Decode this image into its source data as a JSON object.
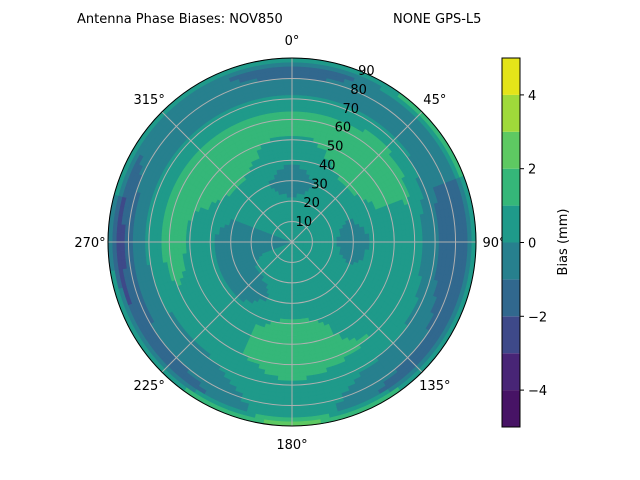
{
  "chart_data": {
    "type": "heatmap",
    "projection": "polar",
    "title_left": "Antenna Phase Biases: NOV850",
    "title_right": "NONE GPS-L5",
    "theta_direction": "clockwise",
    "theta_zero": "north",
    "theta_ticks": [
      "0°",
      "45°",
      "90°",
      "135°",
      "180°",
      "225°",
      "270°",
      "315°"
    ],
    "theta_tick_values": [
      0,
      45,
      90,
      135,
      180,
      225,
      270,
      315
    ],
    "r_ticks": [
      "10",
      "20",
      "30",
      "40",
      "50",
      "60",
      "70",
      "80",
      "90"
    ],
    "r_tick_values": [
      10,
      20,
      30,
      40,
      50,
      60,
      70,
      80,
      90
    ],
    "rlim": [
      0,
      90
    ],
    "grid": true,
    "colorbar": {
      "label": "Bias (mm)",
      "ticks": [
        "4",
        "2",
        "0",
        "−2",
        "−4"
      ],
      "tick_values": [
        4,
        2,
        0,
        -2,
        -4
      ],
      "levels": [
        -5,
        -4,
        -3,
        -2,
        -1,
        0,
        1,
        2,
        3,
        4,
        5
      ],
      "colors": [
        "#471365",
        "#482576",
        "#3e4989",
        "#31688e",
        "#27808e",
        "#1f9a8a",
        "#35b779",
        "#5ec962",
        "#9fda3a",
        "#e4e419"
      ],
      "colormap": "viridis"
    },
    "field_azimuths": [
      0,
      45,
      90,
      135,
      180,
      225,
      270,
      315
    ],
    "field_zeniths": [
      0,
      15,
      30,
      45,
      60,
      75,
      85,
      90
    ],
    "field_values_mm": [
      [
        0,
        0,
        0,
        0,
        0,
        0,
        0,
        0
      ],
      [
        0.5,
        0.5,
        0.5,
        0.5,
        0.5,
        0.5,
        -0.5,
        0.5
      ],
      [
        -0.5,
        0.5,
        -0.5,
        0.5,
        0.5,
        -0.5,
        -0.5,
        0.5
      ],
      [
        0.5,
        1.5,
        0.5,
        0.5,
        1.5,
        0.5,
        0.5,
        1.5
      ],
      [
        1.5,
        1.8,
        0.5,
        1.0,
        1.5,
        0.5,
        1.5,
        1.5
      ],
      [
        -0.5,
        -0.5,
        -1.5,
        -0.5,
        0.5,
        -0.5,
        -0.5,
        -0.5
      ],
      [
        -1.5,
        -0.5,
        -1.5,
        -1.5,
        0.5,
        -1.5,
        -2.5,
        -0.5
      ],
      [
        0.5,
        1.5,
        1.5,
        1.5,
        2.5,
        1.5,
        0.5,
        0.5
      ]
    ]
  }
}
